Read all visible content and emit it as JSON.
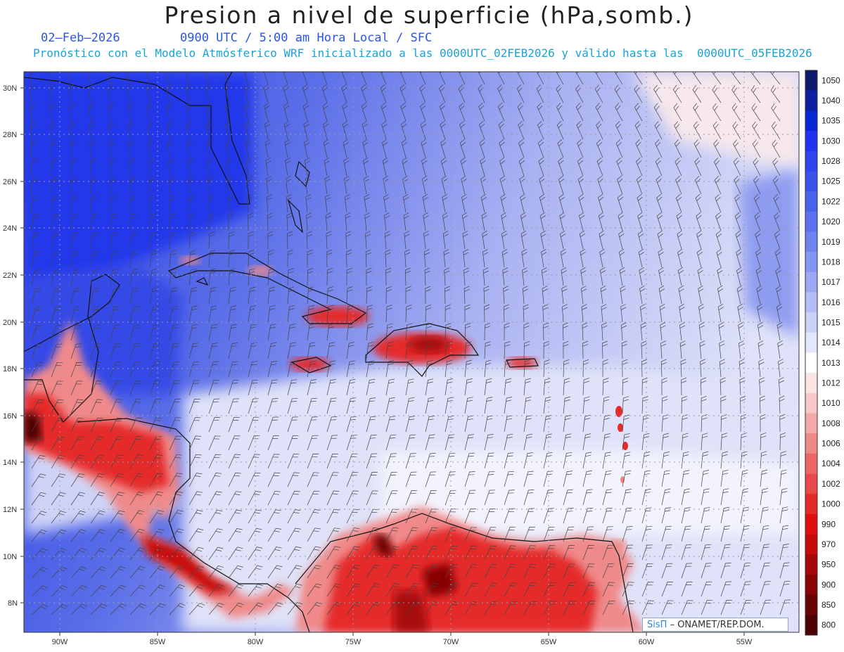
{
  "title": "Presion a nivel de superficie (hPa,somb.)",
  "date": "02–Feb–2026",
  "valid_time": "0900 UTC / 5:00 am Hora Local / SFC",
  "forecast_note": "Pronóstico con el Modelo Atmósferico WRF inicializado a las 0000UTC_02FEB2026 y válido hasta las  0000UTC_05FEB2026",
  "credit": {
    "brand": "SisΠ",
    "org": "– ONAMET/REP.DOM."
  },
  "lat_labels": [
    "30N",
    "28N",
    "26N",
    "24N",
    "22N",
    "20N",
    "18N",
    "16N",
    "14N",
    "12N",
    "10N",
    "8N"
  ],
  "lon_labels": [
    "90W",
    "85W",
    "80W",
    "75W",
    "70W",
    "65W",
    "60W",
    "55W"
  ],
  "colorbar": {
    "levels": [
      "1050",
      "1040",
      "1035",
      "1030",
      "1028",
      "1025",
      "1022",
      "1020",
      "1019",
      "1018",
      "1017",
      "1016",
      "1015",
      "1014",
      "1013",
      "1012",
      "1010",
      "1008",
      "1006",
      "1004",
      "1002",
      "1000",
      "990",
      "970",
      "950",
      "900",
      "850",
      "800"
    ],
    "colors": [
      "#0c1a6e",
      "#0b1fa0",
      "#0a25d4",
      "#1f33ef",
      "#2f44ee",
      "#3a52ec",
      "#4a61ec",
      "#5b71ee",
      "#6e82f0",
      "#8595f2",
      "#9ba8f4",
      "#b3bdf6",
      "#cbd2f8",
      "#e3e7fb",
      "#ffffff",
      "#fbe3e3",
      "#f8c8c8",
      "#f4a9a9",
      "#f08888",
      "#ec6868",
      "#e84848",
      "#e52a2a",
      "#e00f0f",
      "#c80a0a",
      "#a80707",
      "#880505",
      "#6a0404",
      "#4a0202"
    ]
  }
}
